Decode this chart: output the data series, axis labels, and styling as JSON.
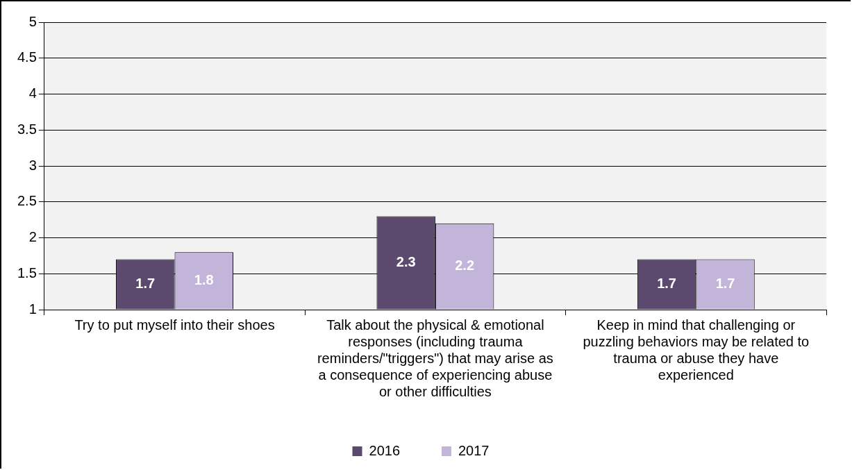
{
  "chart_data": {
    "type": "bar",
    "categories": [
      "Try to put myself into their shoes",
      "Talk about the physical & emotional responses (including trauma reminders/\"triggers\") that may arise as a consequence of experiencing abuse or other difficulties",
      "Keep in mind that challenging or puzzling behaviors may be related to trauma or abuse they have experienced"
    ],
    "series": [
      {
        "name": "2016",
        "color": "#5b4a6e",
        "values": [
          1.7,
          2.3,
          1.7
        ]
      },
      {
        "name": "2017",
        "color": "#c3b4d9",
        "values": [
          1.8,
          2.2,
          1.7
        ]
      }
    ],
    "ylim": [
      1,
      5
    ],
    "yticks": [
      1,
      1.5,
      2,
      2.5,
      3,
      3.5,
      4,
      4.5,
      5
    ],
    "grid": "y",
    "legend": "bottom",
    "data_labels": true
  }
}
